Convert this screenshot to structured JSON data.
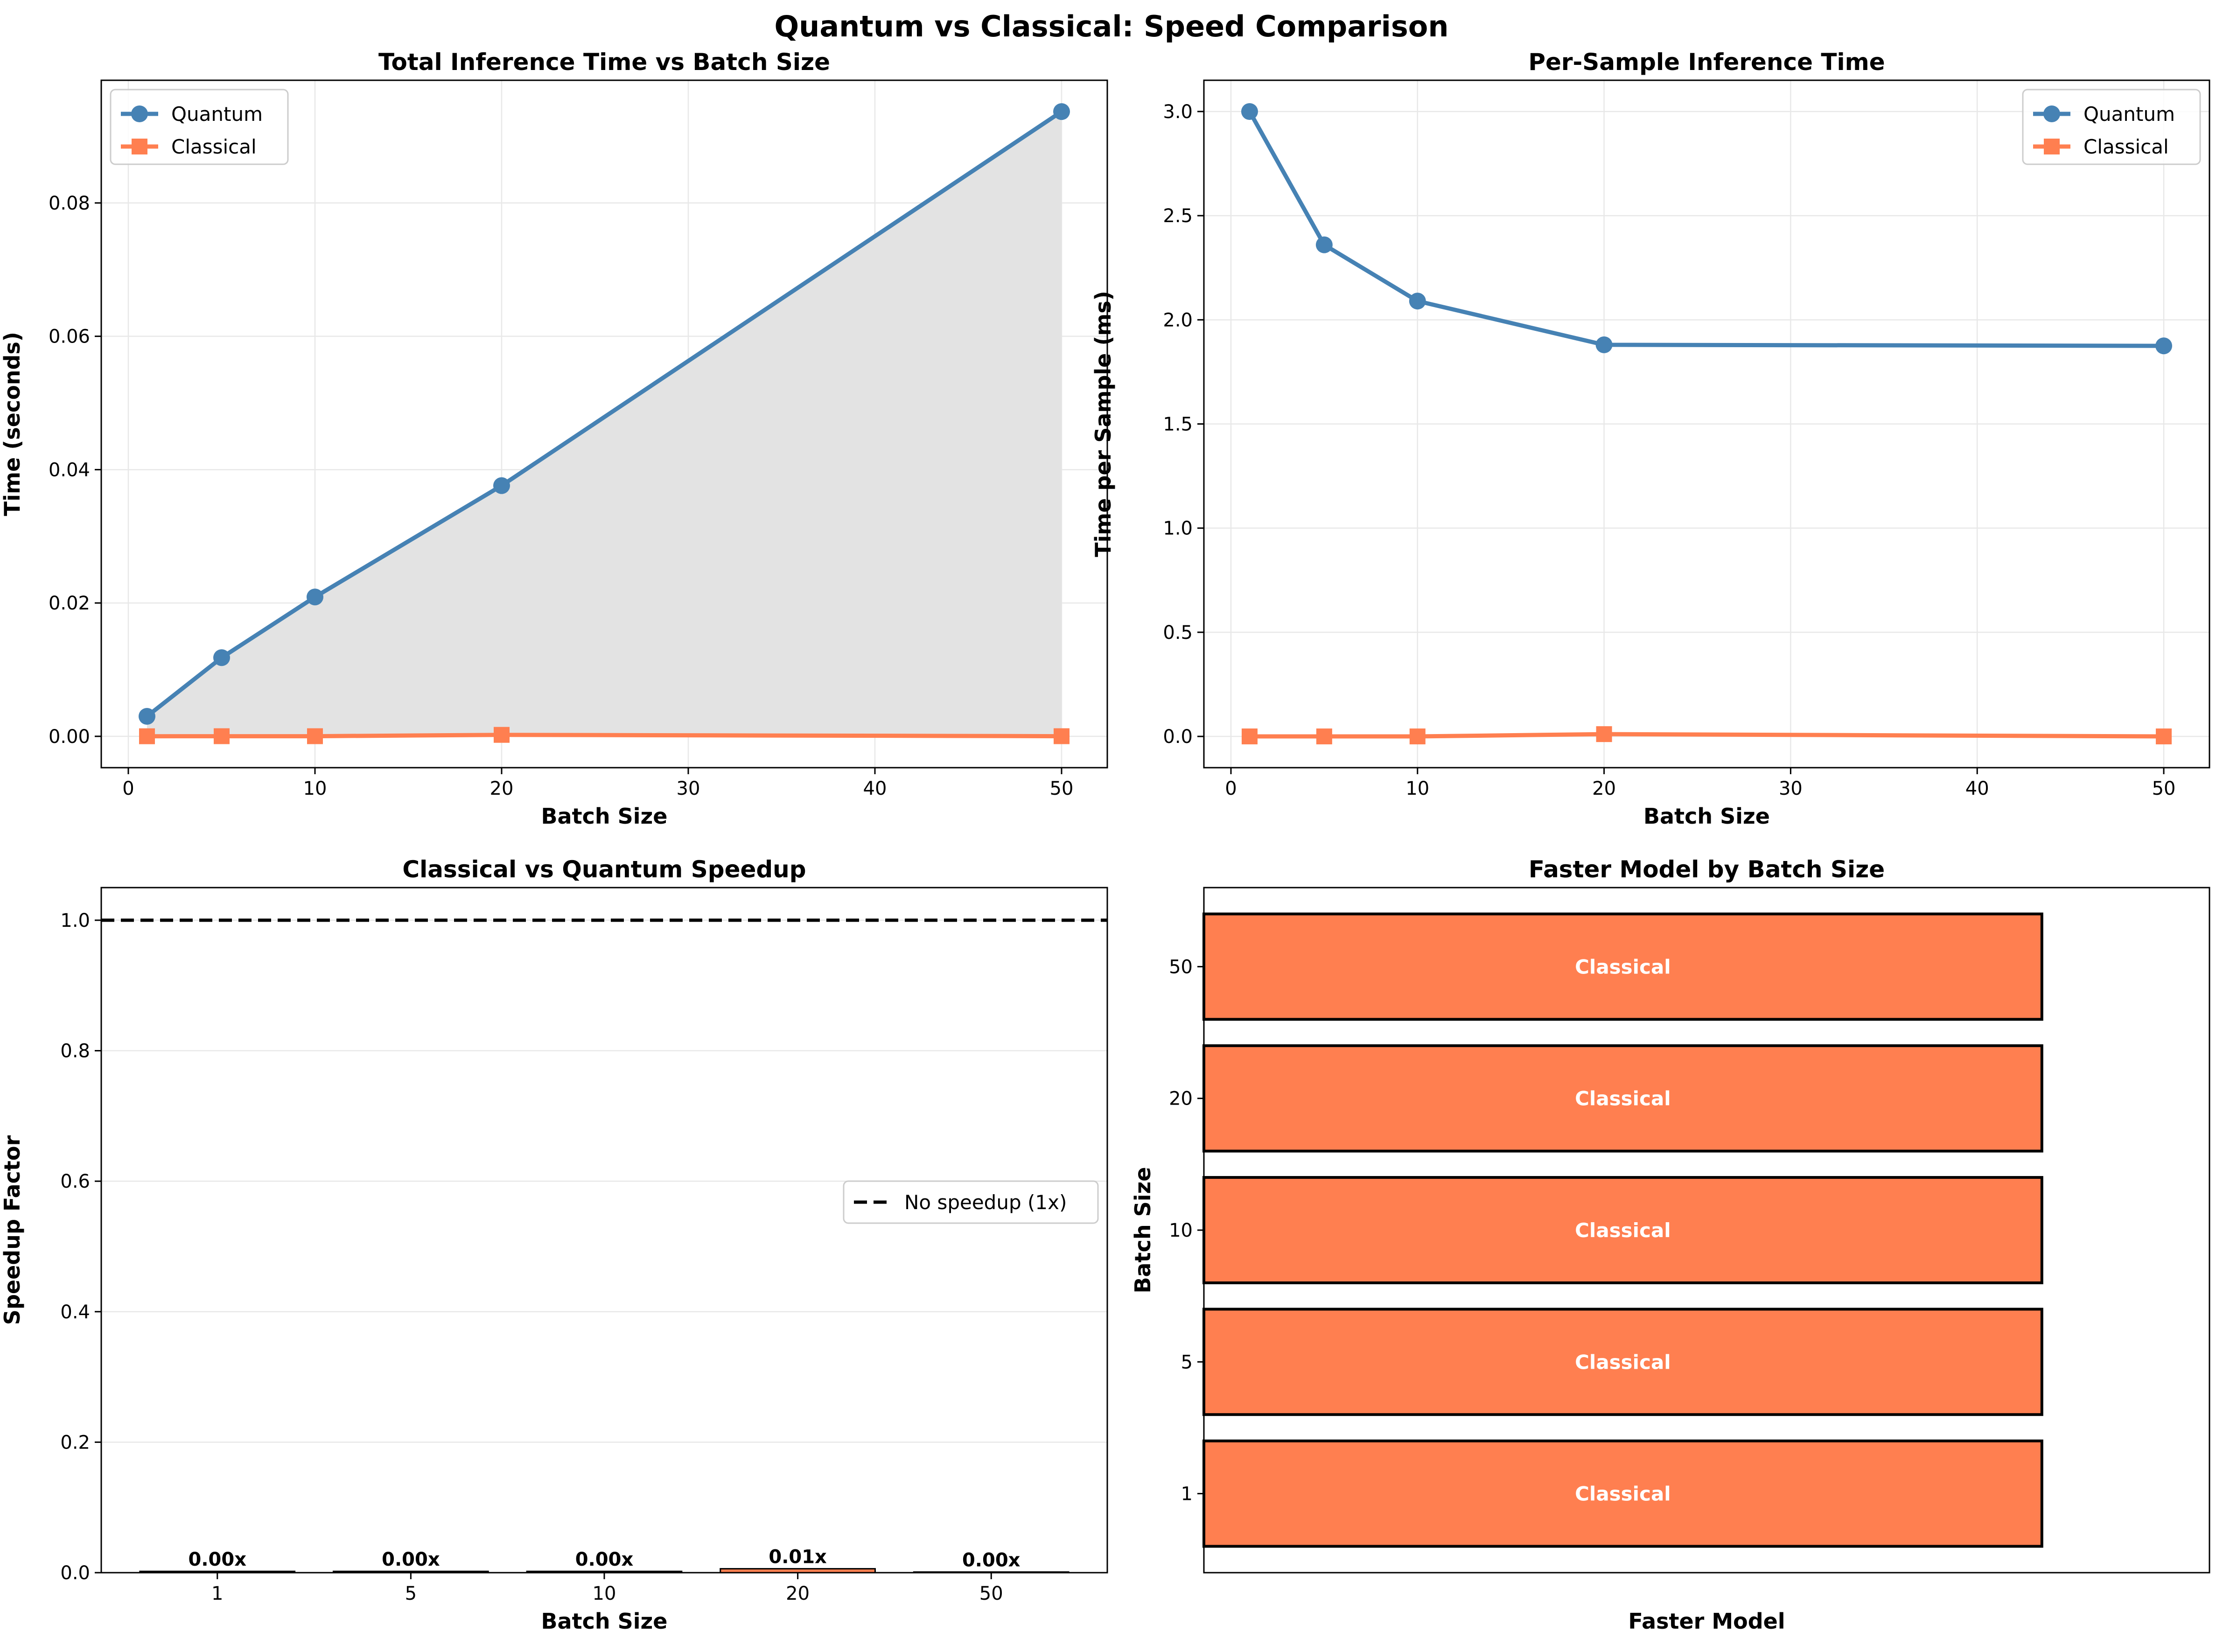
{
  "figure": {
    "suptitle": "Quantum vs Classical: Speed Comparison"
  },
  "colors": {
    "quantum": "#4682b4",
    "classical": "#ff7f50",
    "fill": "#e3e3e3",
    "grid": "#e8e8e8",
    "axis": "#000000",
    "ref_line": "#000000"
  },
  "chart_data": [
    {
      "type": "line",
      "title": "Total Inference Time vs Batch Size",
      "xlabel": "Batch Size",
      "ylabel": "Time (seconds)",
      "xlim": [
        -1.45,
        52.45
      ],
      "ylim": [
        -0.0047,
        0.0984
      ],
      "x_ticks": [
        0,
        10,
        20,
        30,
        40,
        50
      ],
      "y_ticks": [
        0.0,
        0.02,
        0.04,
        0.06,
        0.08
      ],
      "y_tick_labels": [
        "0.00",
        "0.02",
        "0.04",
        "0.06",
        "0.08"
      ],
      "grid": true,
      "legend": "upper left",
      "fill_between": "Quantum vs Classical",
      "x": [
        1,
        5,
        10,
        20,
        50
      ],
      "series": [
        {
          "name": "Quantum",
          "marker": "circle",
          "values": [
            0.003,
            0.0118,
            0.0209,
            0.0376,
            0.0937
          ]
        },
        {
          "name": "Classical",
          "marker": "square",
          "values": [
            1e-05,
            2e-05,
            2e-05,
            0.00022,
            2e-05
          ]
        }
      ]
    },
    {
      "type": "line",
      "title": "Per-Sample Inference Time",
      "xlabel": "Batch Size",
      "ylabel": "Time per Sample (ms)",
      "xlim": [
        -1.45,
        52.45
      ],
      "ylim": [
        -0.15,
        3.15
      ],
      "x_ticks": [
        0,
        10,
        20,
        30,
        40,
        50
      ],
      "y_ticks": [
        0.0,
        0.5,
        1.0,
        1.5,
        2.0,
        2.5,
        3.0
      ],
      "y_tick_labels": [
        "0.0",
        "0.5",
        "1.0",
        "1.5",
        "2.0",
        "2.5",
        "3.0"
      ],
      "grid": true,
      "legend": "upper right",
      "x": [
        1,
        5,
        10,
        20,
        50
      ],
      "series": [
        {
          "name": "Quantum",
          "marker": "circle",
          "values": [
            3.0,
            2.36,
            2.09,
            1.88,
            1.875
          ]
        },
        {
          "name": "Classical",
          "marker": "square",
          "values": [
            0.0,
            0.0,
            0.0,
            0.011,
            0.0
          ]
        }
      ]
    },
    {
      "type": "bar",
      "title": "Classical vs Quantum Speedup",
      "xlabel": "Batch Size",
      "ylabel": "Speedup Factor",
      "ylim": [
        0,
        1.05
      ],
      "y_ticks": [
        0.0,
        0.2,
        0.4,
        0.6,
        0.8,
        1.0
      ],
      "y_tick_labels": [
        "0.0",
        "0.2",
        "0.4",
        "0.6",
        "0.8",
        "1.0"
      ],
      "grid": true,
      "categories": [
        "1",
        "5",
        "10",
        "20",
        "50"
      ],
      "values": [
        0.002,
        0.002,
        0.002,
        0.006,
        0.001
      ],
      "data_labels": [
        "0.00x",
        "0.00x",
        "0.00x",
        "0.01x",
        "0.00x"
      ],
      "reference_line": {
        "y": 1.0,
        "style": "dashed",
        "label": "No speedup (1x)"
      },
      "legend": "center right"
    },
    {
      "type": "bar",
      "orientation": "horizontal",
      "title": "Faster Model by Batch Size",
      "xlabel": "Faster Model",
      "ylabel": "Batch Size",
      "categories": [
        "1",
        "5",
        "10",
        "20",
        "50"
      ],
      "values": [
        1,
        1,
        1,
        1,
        1
      ],
      "data_labels": [
        "Classical",
        "Classical",
        "Classical",
        "Classical",
        "Classical"
      ],
      "xlim": [
        0,
        1.2
      ]
    }
  ]
}
